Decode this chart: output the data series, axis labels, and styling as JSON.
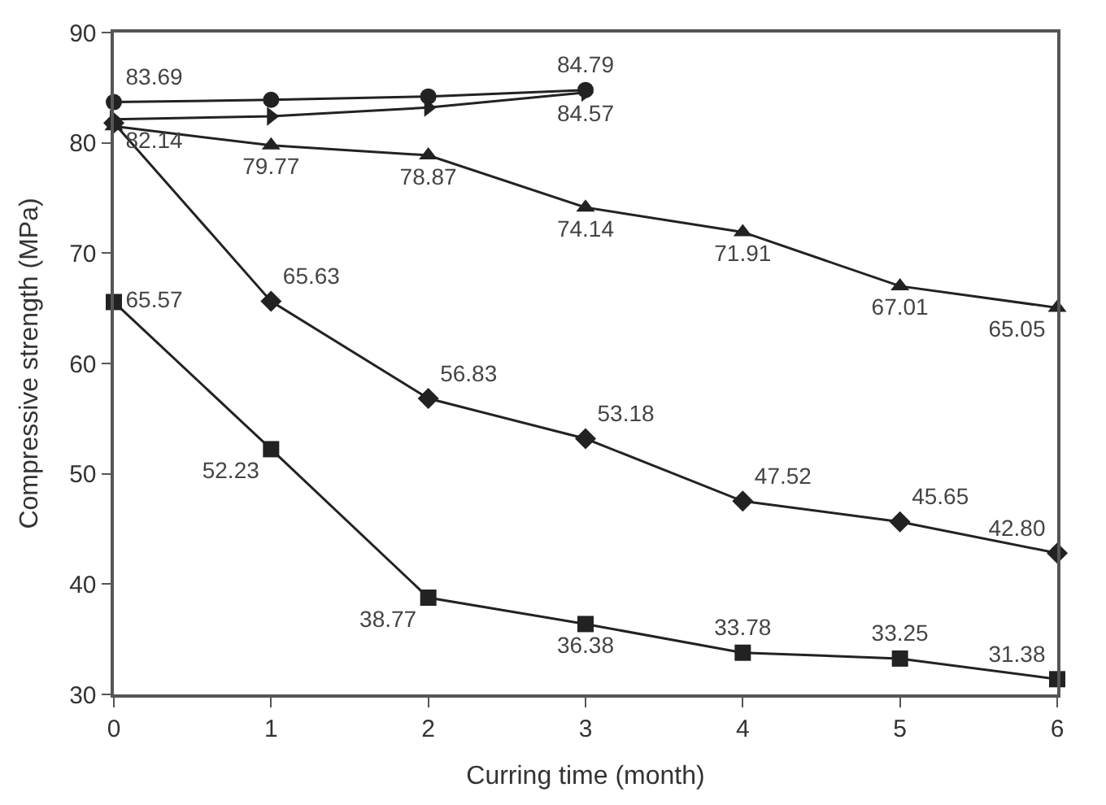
{
  "chart_data": {
    "type": "line",
    "xlabel": "Curring time (month)",
    "ylabel": "Compressive strength (MPa)",
    "x": [
      0,
      1,
      2,
      3,
      4,
      5,
      6
    ],
    "xlim": [
      0,
      6
    ],
    "xticks": [
      0,
      1,
      2,
      3,
      4,
      5,
      6
    ],
    "ylim": [
      30,
      90
    ],
    "yticks": [
      30,
      40,
      50,
      60,
      70,
      80,
      90
    ],
    "legend": false,
    "line_style": "solid",
    "series": [
      {
        "color": "#222222",
        "marker": "circle",
        "x": [
          0,
          1,
          2,
          3
        ],
        "values": [
          83.69,
          83.9,
          84.2,
          84.79
        ],
        "value_labels": [
          "83.69",
          null,
          null,
          "84.79"
        ]
      },
      {
        "color": "#222222",
        "marker": "triangle-right",
        "x": [
          0,
          1,
          2,
          3
        ],
        "values": [
          82.14,
          82.4,
          83.2,
          84.57
        ],
        "value_labels": [
          "82.14",
          null,
          null,
          "84.57"
        ]
      },
      {
        "color": "#222222",
        "marker": "triangle",
        "values": [
          81.5,
          79.77,
          78.87,
          74.14,
          71.91,
          67.01,
          65.05
        ],
        "value_labels": [
          null,
          "79.77",
          "78.87",
          "74.14",
          "71.91",
          "67.01",
          "65.05"
        ]
      },
      {
        "color": "#222222",
        "marker": "diamond",
        "values": [
          81.8,
          65.63,
          56.83,
          53.18,
          47.52,
          45.65,
          42.8
        ],
        "value_labels": [
          null,
          "65.63",
          "56.83",
          "53.18",
          "47.52",
          "45.65",
          "42.80"
        ]
      },
      {
        "color": "#222222",
        "marker": "square",
        "values": [
          65.57,
          52.23,
          38.77,
          36.38,
          33.78,
          33.25,
          31.38
        ],
        "value_labels": [
          "65.57",
          "52.23",
          "38.77",
          "36.38",
          "33.78",
          "33.25",
          "31.38"
        ]
      }
    ]
  }
}
